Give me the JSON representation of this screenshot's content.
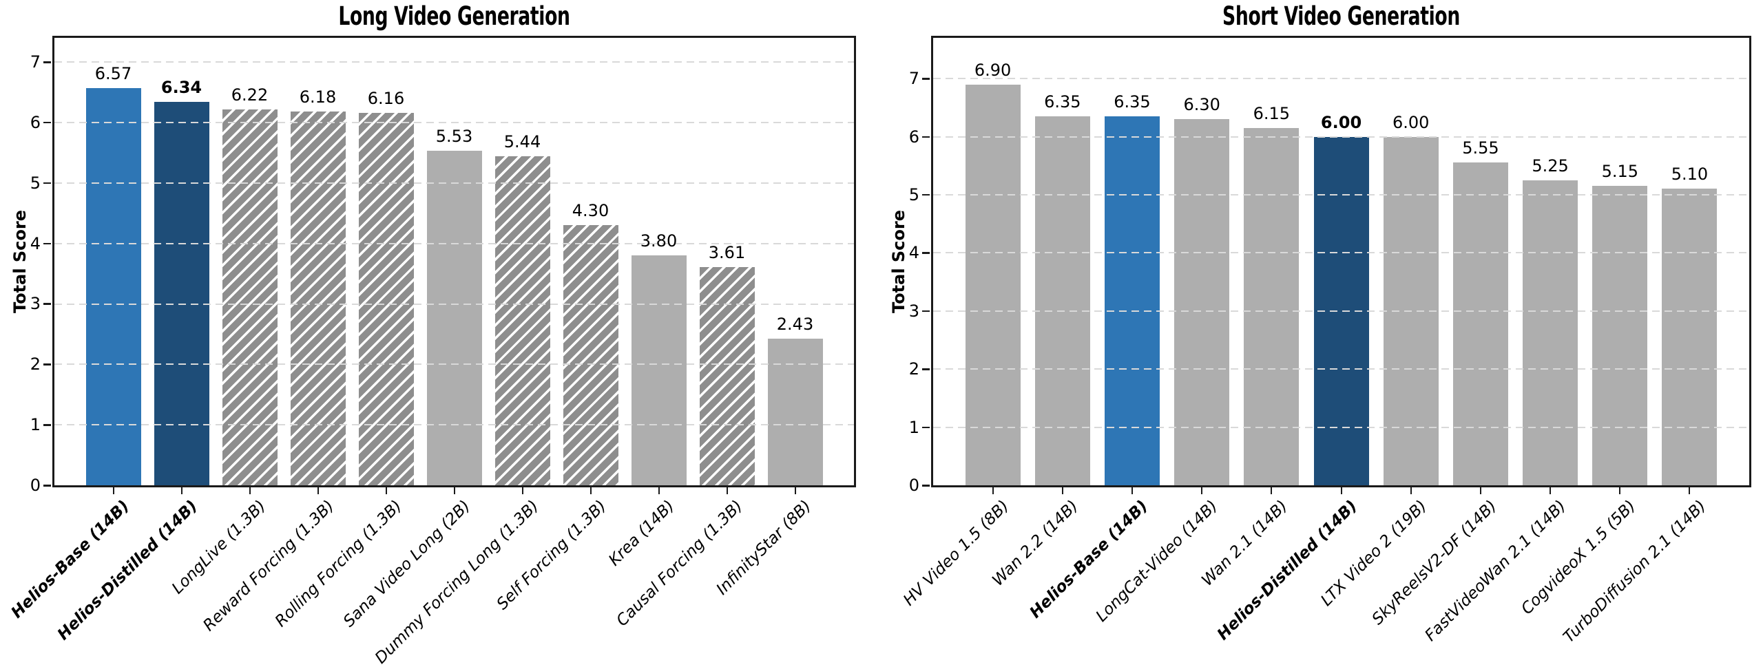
{
  "colors": {
    "highlight_primary": "#2e76b5",
    "highlight_secondary": "#1e4d78",
    "bar_gray": "#aeaeae",
    "bar_gray_hatched": "#8e8e8e",
    "hatch_line": "#ffffff",
    "grid_line": "#d9d9d9",
    "axis_line": "#1a1a1a",
    "text": "#000000"
  },
  "chart_data": [
    {
      "type": "bar",
      "title": "Long Video Generation",
      "xlabel": "",
      "ylabel": "Total Score",
      "ylim": [
        0,
        7.4
      ],
      "yticks": [
        0,
        1,
        2,
        3,
        4,
        5,
        6,
        7
      ],
      "grid": "horizontal-dashed",
      "legend": "none",
      "categories": [
        "Helios-Base (14B)",
        "Helios-Distilled (14B)",
        "LongLive (1.3B)",
        "Reward Forcing (1.3B)",
        "Rolling Forcing (1.3B)",
        "Sana Video Long (2B)",
        "Dummy Forcing Long (1.3B)",
        "Self Forcing (1.3B)",
        "Krea (14B)",
        "Causal Forcing (1.3B)",
        "InfinityStar (8B)"
      ],
      "values": [
        6.57,
        6.34,
        6.22,
        6.18,
        6.16,
        5.53,
        5.44,
        4.3,
        3.8,
        3.61,
        2.43
      ],
      "value_labels": [
        "6.57",
        "6.34",
        "6.22",
        "6.18",
        "6.16",
        "5.53",
        "5.44",
        "4.30",
        "3.80",
        "3.61",
        "2.43"
      ],
      "bar_styles": [
        "blue",
        "navy",
        "hatched",
        "hatched",
        "hatched",
        "gray",
        "hatched",
        "hatched",
        "gray",
        "hatched",
        "gray"
      ],
      "bold_category_indices": [
        0,
        1
      ],
      "bold_value_indices": [
        1
      ]
    },
    {
      "type": "bar",
      "title": "Short Video Generation",
      "xlabel": "",
      "ylabel": "Total Score",
      "ylim": [
        0,
        7.7
      ],
      "yticks": [
        0,
        1,
        2,
        3,
        4,
        5,
        6,
        7
      ],
      "grid": "horizontal-dashed",
      "legend": "none",
      "categories": [
        "HV Video 1.5 (8B)",
        "Wan 2.2 (14B)",
        "Helios-Base (14B)",
        "LongCat-Video (14B)",
        "Wan 2.1 (14B)",
        "Helios-Distilled (14B)",
        "LTX Video 2 (19B)",
        "SkyReelsV2-DF (14B)",
        "FastVideoWan 2.1 (14B)",
        "CogvideoX 1.5 (5B)",
        "TurboDiffusion 2.1 (14B)"
      ],
      "values": [
        6.9,
        6.35,
        6.35,
        6.3,
        6.15,
        6.0,
        6.0,
        5.55,
        5.25,
        5.15,
        5.1
      ],
      "value_labels": [
        "6.90",
        "6.35",
        "6.35",
        "6.30",
        "6.15",
        "6.00",
        "6.00",
        "5.55",
        "5.25",
        "5.15",
        "5.10"
      ],
      "bar_styles": [
        "gray",
        "gray",
        "blue",
        "gray",
        "gray",
        "navy",
        "gray",
        "gray",
        "gray",
        "gray",
        "gray"
      ],
      "bold_category_indices": [
        2,
        5
      ],
      "bold_value_indices": [
        5
      ]
    }
  ]
}
